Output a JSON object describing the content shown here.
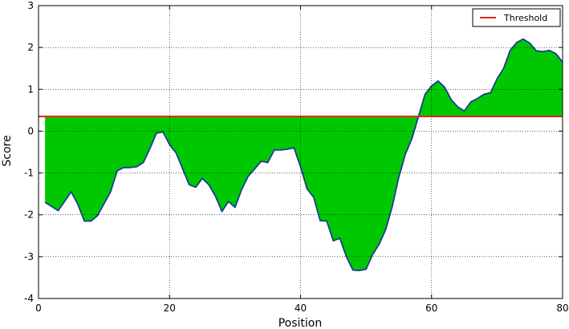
{
  "chart_data": {
    "type": "area",
    "xlabel": "Position",
    "ylabel": "Score",
    "xlim": [
      0,
      80
    ],
    "ylim": [
      -4,
      3
    ],
    "xticks": [
      0,
      20,
      40,
      60,
      80
    ],
    "yticks": [
      -4,
      -3,
      -2,
      -1,
      0,
      1,
      2,
      3
    ],
    "grid": true,
    "legend_position": "top-right",
    "threshold": {
      "name": "Threshold",
      "value": 0.35,
      "color": "#e8231c"
    },
    "fill_colors": {
      "below": "#00c800",
      "above": "#ffff00"
    },
    "line_color": "#1a3d8f",
    "series": [
      {
        "x": [
          1,
          3,
          5,
          6,
          7,
          8,
          9,
          11,
          12,
          13,
          14,
          15,
          16,
          17,
          18,
          19,
          20,
          21,
          22,
          23,
          24,
          25,
          26,
          27,
          28,
          29,
          30,
          31,
          32,
          33,
          34,
          35,
          36,
          37,
          38,
          39,
          40,
          41,
          42,
          43,
          44,
          45,
          46,
          47,
          48,
          49,
          50,
          51,
          52,
          53,
          54,
          55,
          56,
          57,
          58,
          59,
          60,
          61,
          62,
          63,
          64,
          65,
          66,
          67,
          68,
          69,
          70,
          71,
          72,
          73,
          74,
          75,
          76,
          77,
          78,
          79,
          80
        ],
        "y": [
          -1.7,
          -1.9,
          -1.45,
          -1.75,
          -2.15,
          -2.15,
          -2.02,
          -1.45,
          -0.95,
          -0.87,
          -0.87,
          -0.85,
          -0.75,
          -0.42,
          -0.05,
          -0.02,
          -0.32,
          -0.52,
          -0.9,
          -1.28,
          -1.34,
          -1.13,
          -1.28,
          -1.55,
          -1.92,
          -1.68,
          -1.82,
          -1.4,
          -1.08,
          -0.9,
          -0.72,
          -0.75,
          -0.45,
          -0.45,
          -0.43,
          -0.4,
          -0.85,
          -1.38,
          -1.58,
          -2.14,
          -2.15,
          -2.62,
          -2.56,
          -3.0,
          -3.32,
          -3.33,
          -3.3,
          -2.95,
          -2.7,
          -2.35,
          -1.8,
          -1.1,
          -0.55,
          -0.18,
          0.35,
          0.88,
          1.08,
          1.2,
          1.05,
          0.75,
          0.58,
          0.48,
          0.7,
          0.78,
          0.88,
          0.92,
          1.25,
          1.5,
          1.93,
          2.12,
          2.2,
          2.1,
          1.92,
          1.9,
          1.93,
          1.85,
          1.65
        ]
      }
    ]
  }
}
